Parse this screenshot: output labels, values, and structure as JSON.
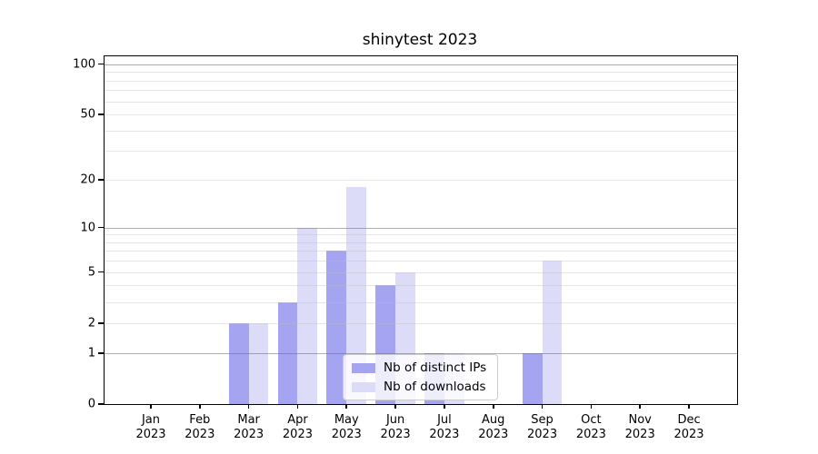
{
  "chart_data": {
    "type": "bar",
    "title": "shinytest 2023",
    "categories": [
      "Jan 2023",
      "Feb 2023",
      "Mar 2023",
      "Apr 2023",
      "May 2023",
      "Jun 2023",
      "Jul 2023",
      "Aug 2023",
      "Sep 2023",
      "Oct 2023",
      "Nov 2023",
      "Dec 2023"
    ],
    "series": [
      {
        "name": "Nb of distinct IPs",
        "color": "#a4a4f1",
        "values": [
          0,
          0,
          2,
          3,
          7,
          4,
          1,
          0,
          1,
          0,
          0,
          0
        ]
      },
      {
        "name": "Nb of downloads",
        "color": "#dcdcf8",
        "values": [
          0,
          0,
          2,
          10,
          18,
          5,
          1,
          0,
          6,
          0,
          0,
          0
        ]
      }
    ],
    "yscale": "log1p",
    "ylim": [
      0,
      100
    ],
    "y_ticks": [
      0,
      1,
      2,
      5,
      10,
      20,
      50,
      100
    ],
    "y_major_gridlines": [
      1,
      10,
      100
    ],
    "y_minor_gridlines": [
      2,
      3,
      4,
      5,
      6,
      7,
      8,
      9,
      20,
      30,
      40,
      50,
      60,
      70,
      80,
      90
    ],
    "grid": "on",
    "legend_position": "lower center"
  }
}
